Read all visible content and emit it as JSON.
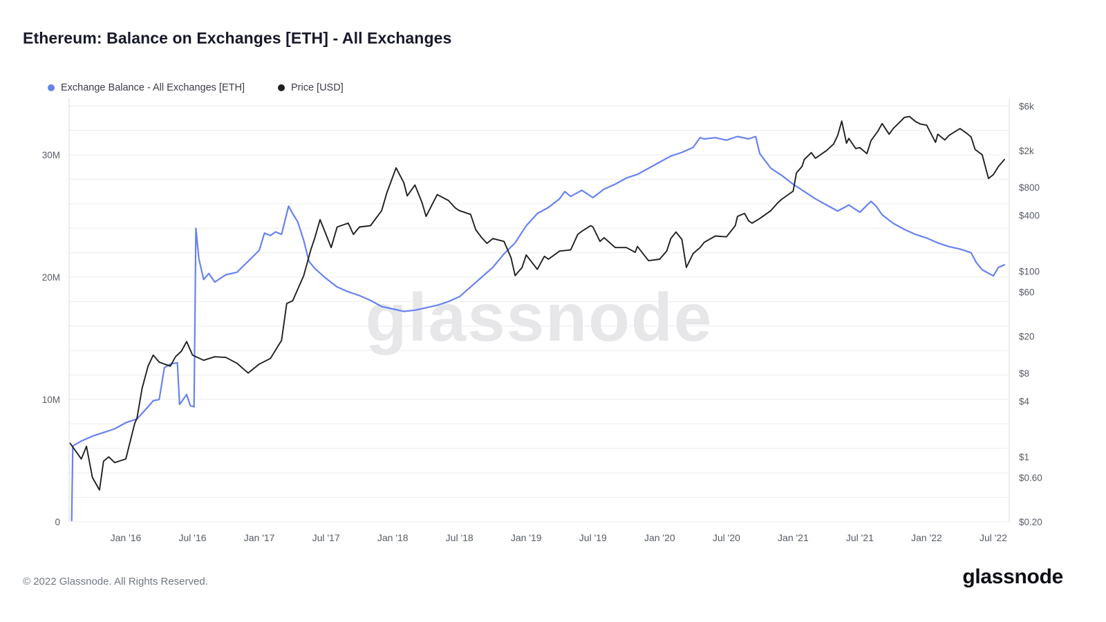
{
  "page": {
    "title": "Ethereum: Balance on Exchanges [ETH] - All Exchanges",
    "footer_copyright": "© 2022 Glassnode. All Rights Reserved.",
    "brand": "glassnode",
    "watermark": "glassnode"
  },
  "legend": [
    {
      "label": "Exchange Balance - All Exchanges [ETH]",
      "color": "#6782ee"
    },
    {
      "label": "Price [USD]",
      "color": "#1f1f1f"
    }
  ],
  "chart_data": {
    "type": "line",
    "title": "Ethereum: Balance on Exchanges [ETH] - All Exchanges",
    "grid": "horizontal-light",
    "legend_position": "top-left",
    "x_axis": {
      "ticks": [
        {
          "label": "Jan '16",
          "date": "2016-01"
        },
        {
          "label": "Jul '16",
          "date": "2016-07"
        },
        {
          "label": "Jan '17",
          "date": "2017-01"
        },
        {
          "label": "Jul '17",
          "date": "2017-07"
        },
        {
          "label": "Jan '18",
          "date": "2018-01"
        },
        {
          "label": "Jul '18",
          "date": "2018-07"
        },
        {
          "label": "Jan '19",
          "date": "2019-01"
        },
        {
          "label": "Jul '19",
          "date": "2019-07"
        },
        {
          "label": "Jan '20",
          "date": "2020-01"
        },
        {
          "label": "Jul '20",
          "date": "2020-07"
        },
        {
          "label": "Jan '21",
          "date": "2021-01"
        },
        {
          "label": "Jul '21",
          "date": "2021-07"
        },
        {
          "label": "Jan '22",
          "date": "2022-01"
        },
        {
          "label": "Jul '22",
          "date": "2022-07"
        }
      ],
      "range_dates": [
        "2015-08",
        "2022-08"
      ]
    },
    "left_axis": {
      "title": "Exchange Balance [ETH]",
      "scale": "linear",
      "unit": "million ETH",
      "range_million": [
        0,
        34.6
      ],
      "ticks": [
        {
          "label": "30M",
          "value": 30
        },
        {
          "label": "20M",
          "value": 20
        },
        {
          "label": "10M",
          "value": 10
        },
        {
          "label": "0",
          "value": 0
        }
      ]
    },
    "right_axis": {
      "title": "Price [USD]",
      "scale": "log",
      "unit": "USD",
      "range_usd": [
        0.2,
        7200
      ],
      "ticks": [
        {
          "label": "$6k",
          "value": 6000
        },
        {
          "label": "$2k",
          "value": 2000
        },
        {
          "label": "$800",
          "value": 800
        },
        {
          "label": "$400",
          "value": 400
        },
        {
          "label": "$100",
          "value": 100
        },
        {
          "label": "$60",
          "value": 60
        },
        {
          "label": "$20",
          "value": 20
        },
        {
          "label": "$8",
          "value": 8
        },
        {
          "label": "$4",
          "value": 4
        },
        {
          "label": "$1",
          "value": 1
        },
        {
          "label": "$0.60",
          "value": 0.6
        },
        {
          "label": "$0.20",
          "value": 0.2
        }
      ]
    },
    "series": [
      {
        "name": "Exchange Balance - All Exchanges [ETH]",
        "axis": "left",
        "color": "#6782ee",
        "unit": "million ETH",
        "points": [
          [
            "2015-08-05",
            0.1
          ],
          [
            "2015-08-08",
            6.2
          ],
          [
            "2015-09",
            6.6
          ],
          [
            "2015-10",
            7.0
          ],
          [
            "2015-11",
            7.3
          ],
          [
            "2015-12",
            7.6
          ],
          [
            "2016-01",
            8.1
          ],
          [
            "2016-02",
            8.4
          ],
          [
            "2016-03",
            9.4
          ],
          [
            "2016-03-15",
            9.9
          ],
          [
            "2016-04",
            10.0
          ],
          [
            "2016-04-15",
            12.6
          ],
          [
            "2016-05",
            12.9
          ],
          [
            "2016-05-20",
            13.0
          ],
          [
            "2016-05-26",
            9.6
          ],
          [
            "2016-06",
            9.8
          ],
          [
            "2016-06-15",
            10.4
          ],
          [
            "2016-06-25",
            9.5
          ],
          [
            "2016-07-05",
            9.4
          ],
          [
            "2016-07-10",
            24.0
          ],
          [
            "2016-07-18",
            21.5
          ],
          [
            "2016-08",
            19.8
          ],
          [
            "2016-08-15",
            20.3
          ],
          [
            "2016-09",
            19.6
          ],
          [
            "2016-10",
            20.2
          ],
          [
            "2016-11",
            20.4
          ],
          [
            "2016-12",
            21.3
          ],
          [
            "2017-01",
            22.2
          ],
          [
            "2017-01-15",
            23.6
          ],
          [
            "2017-02",
            23.4
          ],
          [
            "2017-02-15",
            23.7
          ],
          [
            "2017-03",
            23.5
          ],
          [
            "2017-03-20",
            25.8
          ],
          [
            "2017-04",
            25.2
          ],
          [
            "2017-04-15",
            24.5
          ],
          [
            "2017-05",
            23.0
          ],
          [
            "2017-05-15",
            21.3
          ],
          [
            "2017-06",
            20.7
          ],
          [
            "2017-07",
            19.9
          ],
          [
            "2017-08",
            19.2
          ],
          [
            "2017-09",
            18.8
          ],
          [
            "2017-10",
            18.5
          ],
          [
            "2017-11",
            18.1
          ],
          [
            "2017-12",
            17.6
          ],
          [
            "2018-01",
            17.4
          ],
          [
            "2018-02",
            17.2
          ],
          [
            "2018-03",
            17.3
          ],
          [
            "2018-04",
            17.5
          ],
          [
            "2018-05",
            17.7
          ],
          [
            "2018-06",
            18.0
          ],
          [
            "2018-07",
            18.4
          ],
          [
            "2018-08",
            19.2
          ],
          [
            "2018-09",
            20.0
          ],
          [
            "2018-10",
            20.8
          ],
          [
            "2018-11",
            21.9
          ],
          [
            "2018-12",
            22.8
          ],
          [
            "2019-01",
            24.2
          ],
          [
            "2019-02",
            25.2
          ],
          [
            "2019-03",
            25.7
          ],
          [
            "2019-04",
            26.4
          ],
          [
            "2019-04-15",
            27.0
          ],
          [
            "2019-05",
            26.6
          ],
          [
            "2019-06",
            27.1
          ],
          [
            "2019-07",
            26.5
          ],
          [
            "2019-08",
            27.2
          ],
          [
            "2019-09",
            27.6
          ],
          [
            "2019-10",
            28.1
          ],
          [
            "2019-11",
            28.4
          ],
          [
            "2019-12",
            28.9
          ],
          [
            "2020-01",
            29.4
          ],
          [
            "2020-02",
            29.9
          ],
          [
            "2020-03",
            30.2
          ],
          [
            "2020-04",
            30.6
          ],
          [
            "2020-04-20",
            31.4
          ],
          [
            "2020-05",
            31.3
          ],
          [
            "2020-06",
            31.4
          ],
          [
            "2020-07",
            31.2
          ],
          [
            "2020-08",
            31.5
          ],
          [
            "2020-09",
            31.3
          ],
          [
            "2020-09-20",
            31.5
          ],
          [
            "2020-10",
            30.1
          ],
          [
            "2020-11",
            28.9
          ],
          [
            "2020-12",
            28.3
          ],
          [
            "2021-01",
            27.6
          ],
          [
            "2021-02",
            27.0
          ],
          [
            "2021-03",
            26.4
          ],
          [
            "2021-04",
            25.9
          ],
          [
            "2021-05",
            25.4
          ],
          [
            "2021-06",
            25.9
          ],
          [
            "2021-07",
            25.3
          ],
          [
            "2021-08",
            26.2
          ],
          [
            "2021-08-15",
            25.8
          ],
          [
            "2021-09",
            25.1
          ],
          [
            "2021-10",
            24.4
          ],
          [
            "2021-11",
            23.9
          ],
          [
            "2021-12",
            23.5
          ],
          [
            "2022-01",
            23.2
          ],
          [
            "2022-02",
            22.8
          ],
          [
            "2022-03",
            22.5
          ],
          [
            "2022-04",
            22.3
          ],
          [
            "2022-05",
            22.0
          ],
          [
            "2022-05-15",
            21.2
          ],
          [
            "2022-06",
            20.6
          ],
          [
            "2022-07",
            20.1
          ],
          [
            "2022-07-15",
            20.8
          ],
          [
            "2022-08",
            21.0
          ]
        ]
      },
      {
        "name": "Price [USD]",
        "axis": "right",
        "color": "#1f1f1f",
        "unit": "USD",
        "points": [
          [
            "2015-08",
            1.4
          ],
          [
            "2015-09",
            0.95
          ],
          [
            "2015-09-15",
            1.3
          ],
          [
            "2015-10",
            0.6
          ],
          [
            "2015-10-20",
            0.44
          ],
          [
            "2015-11",
            0.9
          ],
          [
            "2015-11-15",
            1.0
          ],
          [
            "2015-12",
            0.87
          ],
          [
            "2016-01",
            0.95
          ],
          [
            "2016-01-25",
            2.3
          ],
          [
            "2016-02",
            2.6
          ],
          [
            "2016-02-15",
            5.5
          ],
          [
            "2016-03",
            9.5
          ],
          [
            "2016-03-15",
            12.5
          ],
          [
            "2016-04",
            10.5
          ],
          [
            "2016-05",
            9.5
          ],
          [
            "2016-05-15",
            12.0
          ],
          [
            "2016-06",
            13.8
          ],
          [
            "2016-06-15",
            17.5
          ],
          [
            "2016-07",
            12.5
          ],
          [
            "2016-08",
            11.0
          ],
          [
            "2016-09",
            12.0
          ],
          [
            "2016-10",
            11.8
          ],
          [
            "2016-11",
            10.2
          ],
          [
            "2016-12",
            8.0
          ],
          [
            "2017-01",
            10.0
          ],
          [
            "2017-02",
            11.5
          ],
          [
            "2017-03",
            18
          ],
          [
            "2017-03-15",
            45
          ],
          [
            "2017-04",
            48
          ],
          [
            "2017-05",
            90
          ],
          [
            "2017-05-20",
            170
          ],
          [
            "2017-06",
            230
          ],
          [
            "2017-06-15",
            360
          ],
          [
            "2017-07",
            250
          ],
          [
            "2017-07-15",
            180
          ],
          [
            "2017-08",
            300
          ],
          [
            "2017-09",
            330
          ],
          [
            "2017-09-15",
            250
          ],
          [
            "2017-10",
            300
          ],
          [
            "2017-11",
            310
          ],
          [
            "2017-12",
            450
          ],
          [
            "2017-12-15",
            700
          ],
          [
            "2018-01-10",
            1300
          ],
          [
            "2018-02",
            900
          ],
          [
            "2018-02-10",
            650
          ],
          [
            "2018-03",
            850
          ],
          [
            "2018-03-20",
            550
          ],
          [
            "2018-04",
            390
          ],
          [
            "2018-05",
            670
          ],
          [
            "2018-06",
            580
          ],
          [
            "2018-06-20",
            480
          ],
          [
            "2018-07",
            450
          ],
          [
            "2018-08",
            410
          ],
          [
            "2018-08-15",
            280
          ],
          [
            "2018-09",
            230
          ],
          [
            "2018-09-15",
            200
          ],
          [
            "2018-10",
            225
          ],
          [
            "2018-11",
            210
          ],
          [
            "2018-11-20",
            140
          ],
          [
            "2018-12",
            90
          ],
          [
            "2018-12-20",
            110
          ],
          [
            "2019-01",
            150
          ],
          [
            "2019-02",
            105
          ],
          [
            "2019-02-20",
            145
          ],
          [
            "2019-03",
            135
          ],
          [
            "2019-04",
            165
          ],
          [
            "2019-05",
            170
          ],
          [
            "2019-05-20",
            250
          ],
          [
            "2019-06",
            270
          ],
          [
            "2019-06-25",
            310
          ],
          [
            "2019-07",
            300
          ],
          [
            "2019-07-20",
            210
          ],
          [
            "2019-08",
            230
          ],
          [
            "2019-09",
            180
          ],
          [
            "2019-10",
            180
          ],
          [
            "2019-10-25",
            160
          ],
          [
            "2019-11",
            185
          ],
          [
            "2019-12",
            130
          ],
          [
            "2020-01",
            135
          ],
          [
            "2020-01-20",
            165
          ],
          [
            "2020-02",
            225
          ],
          [
            "2020-02-15",
            265
          ],
          [
            "2020-03",
            220
          ],
          [
            "2020-03-13",
            110
          ],
          [
            "2020-04",
            155
          ],
          [
            "2020-04-20",
            180
          ],
          [
            "2020-05",
            205
          ],
          [
            "2020-06",
            240
          ],
          [
            "2020-07",
            235
          ],
          [
            "2020-07-25",
            310
          ],
          [
            "2020-08",
            390
          ],
          [
            "2020-08-20",
            420
          ],
          [
            "2020-09",
            350
          ],
          [
            "2020-09-10",
            330
          ],
          [
            "2020-10",
            370
          ],
          [
            "2020-11",
            450
          ],
          [
            "2020-11-20",
            550
          ],
          [
            "2020-12",
            600
          ],
          [
            "2021-01",
            730
          ],
          [
            "2021-01-10",
            1150
          ],
          [
            "2021-01-25",
            1350
          ],
          [
            "2021-02",
            1600
          ],
          [
            "2021-02-20",
            1900
          ],
          [
            "2021-03",
            1650
          ],
          [
            "2021-04",
            2000
          ],
          [
            "2021-04-20",
            2350
          ],
          [
            "2021-05",
            2900
          ],
          [
            "2021-05-12",
            4150
          ],
          [
            "2021-05-25",
            2400
          ],
          [
            "2021-06",
            2700
          ],
          [
            "2021-06-20",
            2100
          ],
          [
            "2021-07",
            2150
          ],
          [
            "2021-07-20",
            1850
          ],
          [
            "2021-08",
            2550
          ],
          [
            "2021-08-20",
            3250
          ],
          [
            "2021-09",
            3900
          ],
          [
            "2021-09-20",
            3000
          ],
          [
            "2021-10",
            3450
          ],
          [
            "2021-10-20",
            4100
          ],
          [
            "2021-11",
            4550
          ],
          [
            "2021-11-15",
            4650
          ],
          [
            "2021-12",
            4100
          ],
          [
            "2021-12-15",
            3850
          ],
          [
            "2022-01",
            3750
          ],
          [
            "2022-01-25",
            2450
          ],
          [
            "2022-02",
            3000
          ],
          [
            "2022-02-20",
            2600
          ],
          [
            "2022-03",
            2900
          ],
          [
            "2022-04",
            3450
          ],
          [
            "2022-04-20",
            3050
          ],
          [
            "2022-05",
            2800
          ],
          [
            "2022-05-12",
            2050
          ],
          [
            "2022-06",
            1800
          ],
          [
            "2022-06-18",
            1000
          ],
          [
            "2022-07",
            1100
          ],
          [
            "2022-07-15",
            1350
          ],
          [
            "2022-08",
            1600
          ]
        ]
      }
    ]
  }
}
